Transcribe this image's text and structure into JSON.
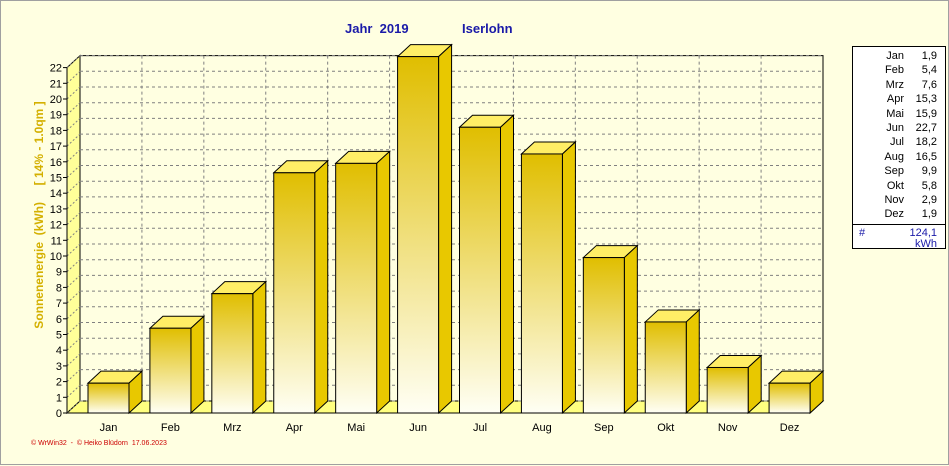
{
  "header": {
    "year_title": "Jahr  2019",
    "city": "Iserlohn"
  },
  "colors": {
    "background": "#ffffe1",
    "bar_front_top": "#e0be00",
    "bar_front_bottom": "#fffff4",
    "bar_top": "#ffee66",
    "bar_side": "#e8c800",
    "title": "#1a1aa8",
    "axis_label": "#d4b000",
    "footer": "#cc0000"
  },
  "chart_data": {
    "type": "bar",
    "categories": [
      "Jan",
      "Feb",
      "Mrz",
      "Apr",
      "Mai",
      "Jun",
      "Jul",
      "Aug",
      "Sep",
      "Okt",
      "Nov",
      "Dez"
    ],
    "values": [
      1.9,
      5.4,
      7.6,
      15.3,
      15.9,
      22.7,
      18.2,
      16.5,
      9.9,
      5.8,
      2.9,
      1.9
    ],
    "ylabel": "Sonnenenergie  (kWh)     [ 14% - 1.0qm ]",
    "ylim": [
      0,
      22
    ],
    "y_ticks": [
      "0",
      "1",
      "2",
      "3",
      "4",
      "5",
      "6",
      "7",
      "8",
      "9",
      "10",
      "11",
      "12",
      "13",
      "14",
      "15",
      "16",
      "17",
      "18",
      "19",
      "20",
      "21",
      "22"
    ],
    "grid": true,
    "style": "3d",
    "legend_position": "right"
  },
  "legend": {
    "rows": [
      {
        "month": "Jan",
        "value": "1,9"
      },
      {
        "month": "Feb",
        "value": "5,4"
      },
      {
        "month": "Mrz",
        "value": "7,6"
      },
      {
        "month": "Apr",
        "value": "15,3"
      },
      {
        "month": "Mai",
        "value": "15,9"
      },
      {
        "month": "Jun",
        "value": "22,7"
      },
      {
        "month": "Jul",
        "value": "18,2"
      },
      {
        "month": "Aug",
        "value": "16,5"
      },
      {
        "month": "Sep",
        "value": "9,9"
      },
      {
        "month": "Okt",
        "value": "5,8"
      },
      {
        "month": "Nov",
        "value": "2,9"
      },
      {
        "month": "Dez",
        "value": "1,9"
      }
    ],
    "total_symbol": "#",
    "total": "124,1",
    "unit": "kWh"
  },
  "footer": "© WrWin32  -  © Heiko Blüdorn  17.06.2023"
}
